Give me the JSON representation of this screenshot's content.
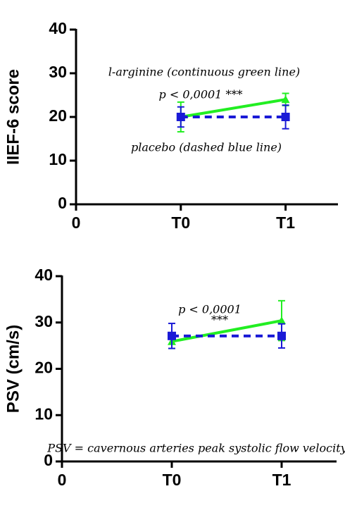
{
  "chart_data": [
    {
      "type": "line",
      "ylabel": "IIEF-6 score",
      "x": [
        1,
        2
      ],
      "xlim": [
        0,
        2.5
      ],
      "xticks": [
        {
          "value": 0,
          "label": "0"
        },
        {
          "value": 1,
          "label": "T0"
        },
        {
          "value": 2,
          "label": "T1"
        }
      ],
      "ylim": [
        0,
        40
      ],
      "yticks": [
        0,
        10,
        20,
        30,
        40
      ],
      "series": [
        {
          "color": "#22ee22",
          "marker": "triangle",
          "dashed": false,
          "values": [
            20,
            24
          ],
          "errors": [
            3.4,
            1.4
          ]
        },
        {
          "color": "#1a1ad6",
          "marker": "square",
          "dashed": true,
          "values": [
            20,
            20
          ],
          "errors": [
            2.3,
            2.7
          ]
        }
      ],
      "annotations": [
        "l-arginine (continuous green line)",
        "p < 0,0001 ***",
        "placebo (dashed blue line)"
      ]
    },
    {
      "type": "line",
      "ylabel": "PSV (cm/s)",
      "x": [
        1,
        2
      ],
      "xlim": [
        0,
        2.5
      ],
      "xticks": [
        {
          "value": 0,
          "label": "0"
        },
        {
          "value": 1,
          "label": "T0"
        },
        {
          "value": 2,
          "label": "T1"
        }
      ],
      "ylim": [
        0,
        40
      ],
      "yticks": [
        0,
        10,
        20,
        30,
        40
      ],
      "series": [
        {
          "color": "#22ee22",
          "marker": "triangle",
          "dashed": false,
          "values": [
            25.9,
            30.4
          ],
          "errors": [
            1.5,
            4.3
          ]
        },
        {
          "color": "#1a1ad6",
          "marker": "square",
          "dashed": true,
          "values": [
            27.1,
            27.1
          ],
          "errors": [
            2.7,
            2.6
          ]
        }
      ],
      "annotations": [
        "p < 0,0001",
        "***",
        "PSV = cavernous arteries peak systolic flow velocity"
      ]
    }
  ]
}
